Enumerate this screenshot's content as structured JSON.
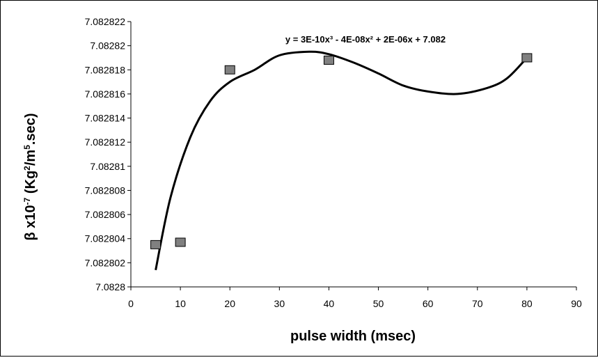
{
  "chart_data": {
    "type": "scatter",
    "xlabel": "pulse width (msec)",
    "ylabel_prefix": "β x10",
    "ylabel_exp1": "-7",
    "ylabel_mid": " (Kg",
    "ylabel_exp2": "2",
    "ylabel_mid2": "/m",
    "ylabel_exp3": "5",
    "ylabel_suffix": ".sec)",
    "xlim": [
      0,
      90
    ],
    "ylim": [
      7.0828,
      7.082822
    ],
    "x_ticks": [
      "0",
      "10",
      "20",
      "30",
      "40",
      "50",
      "60",
      "70",
      "80",
      "90"
    ],
    "x_tick_values": [
      0,
      10,
      20,
      30,
      40,
      50,
      60,
      70,
      80,
      90
    ],
    "y_ticks": [
      "7.0828",
      "7.082802",
      "7.082804",
      "7.082806",
      "7.082808",
      "7.08281",
      "7.082812",
      "7.082814",
      "7.082816",
      "7.082818",
      "7.08282",
      "7.082822"
    ],
    "y_tick_values": [
      7.0828,
      7.082802,
      7.082804,
      7.082806,
      7.082808,
      7.08281,
      7.082812,
      7.082814,
      7.082816,
      7.082818,
      7.08282,
      7.082822
    ],
    "points": [
      {
        "x": 5,
        "y": 7.0828035
      },
      {
        "x": 10,
        "y": 7.0828037
      },
      {
        "x": 20,
        "y": 7.082818
      },
      {
        "x": 40,
        "y": 7.0828188
      },
      {
        "x": 80,
        "y": 7.082819
      }
    ],
    "trendline": {
      "kind": "polynomial-3",
      "equation": "y = 3E-10x³ - 4E-08x² + 2E-06x + 7.082",
      "curve": [
        {
          "x": 5,
          "y": 7.0828014
        },
        {
          "x": 8,
          "y": 7.0828074
        },
        {
          "x": 12,
          "y": 7.0828124
        },
        {
          "x": 16,
          "y": 7.0828154
        },
        {
          "x": 20,
          "y": 7.082817
        },
        {
          "x": 25,
          "y": 7.082818
        },
        {
          "x": 30,
          "y": 7.0828192
        },
        {
          "x": 36,
          "y": 7.0828195
        },
        {
          "x": 40,
          "y": 7.0828193
        },
        {
          "x": 45,
          "y": 7.0828186
        },
        {
          "x": 50,
          "y": 7.0828177
        },
        {
          "x": 55,
          "y": 7.0828167
        },
        {
          "x": 60,
          "y": 7.0828162
        },
        {
          "x": 66,
          "y": 7.082816
        },
        {
          "x": 72,
          "y": 7.0828165
        },
        {
          "x": 76,
          "y": 7.0828173
        },
        {
          "x": 80,
          "y": 7.082819
        }
      ]
    },
    "grid": false,
    "marker_color": "#808080",
    "line_color": "#000000"
  }
}
